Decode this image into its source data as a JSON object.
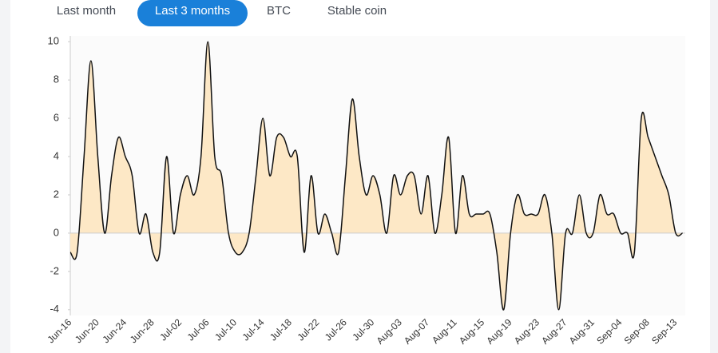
{
  "tabs": [
    {
      "label": "Last month",
      "selected": false
    },
    {
      "label": "Last 3 months",
      "selected": true
    },
    {
      "label": "BTC",
      "selected": false
    },
    {
      "label": "Stable coin",
      "selected": false
    }
  ],
  "chart_data": {
    "type": "area",
    "categories": [
      "Jun-16",
      null,
      null,
      null,
      "Jun-20",
      null,
      null,
      null,
      "Jun-24",
      null,
      null,
      null,
      "Jun-28",
      null,
      null,
      null,
      "Jul-02",
      null,
      null,
      null,
      "Jul-06",
      null,
      null,
      null,
      "Jul-10",
      null,
      null,
      null,
      "Jul-14",
      null,
      null,
      null,
      "Jul-18",
      null,
      null,
      null,
      "Jul-22",
      null,
      null,
      null,
      "Jul-26",
      null,
      null,
      null,
      "Jul-30",
      null,
      null,
      null,
      "Aug-03",
      null,
      null,
      null,
      "Aug-07",
      null,
      null,
      null,
      "Aug-11",
      null,
      null,
      null,
      "Aug-15",
      null,
      null,
      null,
      "Aug-19",
      null,
      null,
      null,
      "Aug-23",
      null,
      null,
      null,
      "Aug-27",
      null,
      null,
      null,
      "Aug-31",
      null,
      null,
      null,
      "Sep-04",
      null,
      null,
      null,
      "Sep-08",
      null,
      null,
      null,
      "Sep-13",
      null
    ],
    "values": [
      -1,
      -1,
      4,
      9,
      4,
      0,
      3,
      5,
      4,
      3,
      0,
      1,
      -1,
      -1,
      4,
      0,
      2,
      3,
      2,
      4,
      10,
      4,
      3,
      0,
      -1,
      -1,
      0,
      3,
      6,
      3,
      5,
      5,
      4,
      4,
      -1,
      3,
      0,
      1,
      0,
      -1,
      3,
      7,
      4,
      2,
      3,
      2,
      0,
      3,
      2,
      3,
      3,
      1,
      3,
      0,
      2,
      5,
      0,
      3,
      1,
      1,
      1,
      1,
      -1,
      -4,
      0,
      2,
      1,
      1,
      1,
      2,
      0,
      -4,
      0,
      0,
      2,
      0,
      0,
      2,
      1,
      1,
      0,
      0,
      -1,
      6,
      5,
      4,
      3,
      2,
      0,
      0
    ],
    "color": "#fde8c6",
    "line_color": "#111111",
    "ylim": [
      -4.3,
      10.3
    ],
    "yticks": [
      -4,
      -2,
      0,
      2,
      4,
      6,
      8,
      10
    ]
  }
}
